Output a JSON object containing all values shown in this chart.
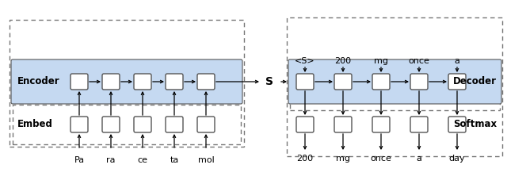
{
  "fig_width": 6.4,
  "fig_height": 2.27,
  "dpi": 100,
  "bg_color": "#ffffff",
  "encoder_fill": "#c5d9f1",
  "decoder_fill": "#c5d9f1",
  "box_edge": "#555555",
  "dash_edge": "#777777",
  "encoder_label": "Encoder",
  "embed_label": "Embed",
  "softmax_label": "Softmax",
  "decoder_label": "Decoder",
  "s_label": "S",
  "encoder_inputs": [
    "Pa",
    "ra",
    "ce",
    "ta",
    "mol"
  ],
  "decoder_inputs": [
    "<S>",
    "200",
    "mg",
    "once",
    "a"
  ],
  "decoder_outputs": [
    "200",
    "mg",
    "once",
    "a",
    "day"
  ]
}
